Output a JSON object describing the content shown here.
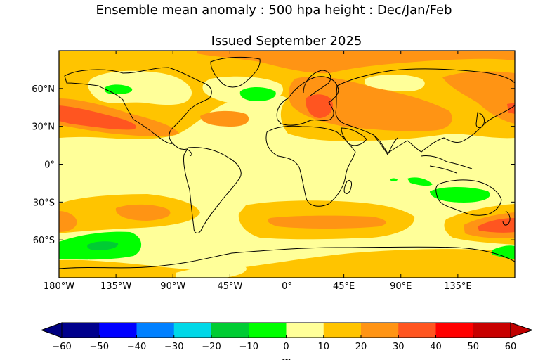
{
  "title": "Ensemble mean anomaly : 500 hpa height : Dec/Jan/Feb",
  "subtitle": "Issued September 2025",
  "map": {
    "projection": "equirectangular",
    "lon_range": [
      -180,
      180
    ],
    "lat_range": [
      -90,
      90
    ],
    "lon_ticks": [
      "180°W",
      "135°W",
      "90°W",
      "45°W",
      "0°",
      "45°E",
      "90°E",
      "135°E"
    ],
    "lat_ticks": [
      "60°N",
      "30°N",
      "0°",
      "30°S",
      "60°S"
    ],
    "background_band": "0–10"
  },
  "colorbar": {
    "ticks": [
      "−60",
      "−50",
      "−40",
      "−30",
      "−20",
      "−10",
      "0",
      "10",
      "20",
      "30",
      "40",
      "50",
      "60"
    ],
    "unit": "m",
    "low_extend_color": "#000080",
    "high_extend_color": "#c00000",
    "bins": [
      {
        "range": "-60–-50",
        "color": "#00008c"
      },
      {
        "range": "-50–-40",
        "color": "#0000ff"
      },
      {
        "range": "-40–-30",
        "color": "#0080ff"
      },
      {
        "range": "-30–-20",
        "color": "#00d8e8"
      },
      {
        "range": "-20–-10",
        "color": "#00cc33"
      },
      {
        "range": "-10–0",
        "color": "#00ff00"
      },
      {
        "range": "0–10",
        "color": "#ffff99"
      },
      {
        "range": "10–20",
        "color": "#ffc400"
      },
      {
        "range": "20–30",
        "color": "#ff9414"
      },
      {
        "range": "30–40",
        "color": "#ff5520"
      },
      {
        "range": "40–50",
        "color": "#ff0000"
      },
      {
        "range": "50–60",
        "color": "#c80000"
      }
    ]
  },
  "colors": {
    "pale": "#ffff99",
    "yellow": "#ffc400",
    "orange": "#ff9414",
    "red_orange": "#ff5520",
    "green": "#00ff00",
    "dark_green": "#00cc33"
  }
}
